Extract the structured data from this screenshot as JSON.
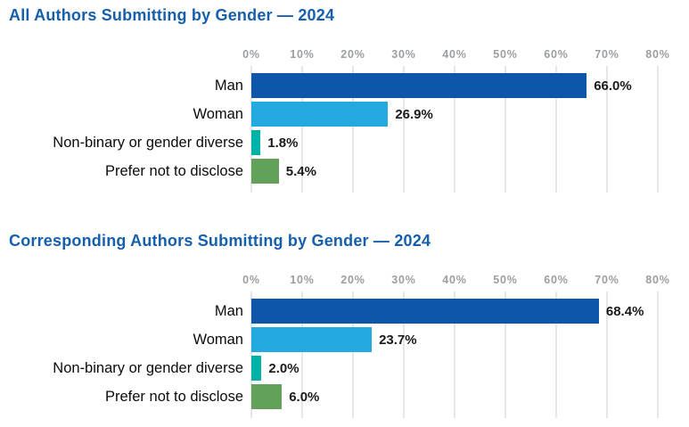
{
  "colors": {
    "title_blue": "#155fad",
    "axis_label_gray": "#9b9ea2",
    "gridline_gray": "#e4e6e7",
    "value_label_dark": "#1a1a1a",
    "bar_man_blue": "#0f56a8",
    "bar_woman_light_blue": "#22a9e0",
    "bar_nonbinary_teal": "#00b1a7",
    "bar_prefer_green": "#62a15a"
  },
  "chart_data": [
    {
      "type": "bar",
      "orientation": "horizontal",
      "title": "All Authors Submitting by Gender — 2024",
      "categories": [
        "Man",
        "Woman",
        "Non-binary or gender diverse",
        "Prefer not to disclose"
      ],
      "values": [
        66.0,
        26.9,
        1.8,
        5.4
      ],
      "value_labels": [
        "66.0%",
        "26.9%",
        "1.8%",
        "5.4%"
      ],
      "bar_colors": [
        "#0f56a8",
        "#22a9e0",
        "#00b1a7",
        "#62a15a"
      ],
      "xlim": [
        0,
        80
      ],
      "x_ticks": [
        "0%",
        "10%",
        "20%",
        "30%",
        "40%",
        "50%",
        "60%",
        "70%",
        "80%"
      ],
      "grid": true,
      "legend": false
    },
    {
      "type": "bar",
      "orientation": "horizontal",
      "title": "Corresponding Authors Submitting by Gender — 2024",
      "categories": [
        "Man",
        "Woman",
        "Non-binary or gender diverse",
        "Prefer not to disclose"
      ],
      "values": [
        68.4,
        23.7,
        2.0,
        6.0
      ],
      "value_labels": [
        "68.4%",
        "23.7%",
        "2.0%",
        "6.0%"
      ],
      "bar_colors": [
        "#0f56a8",
        "#22a9e0",
        "#00b1a7",
        "#62a15a"
      ],
      "xlim": [
        0,
        80
      ],
      "x_ticks": [
        "0%",
        "10%",
        "20%",
        "30%",
        "40%",
        "50%",
        "60%",
        "70%",
        "80%"
      ],
      "grid": true,
      "legend": false
    }
  ]
}
